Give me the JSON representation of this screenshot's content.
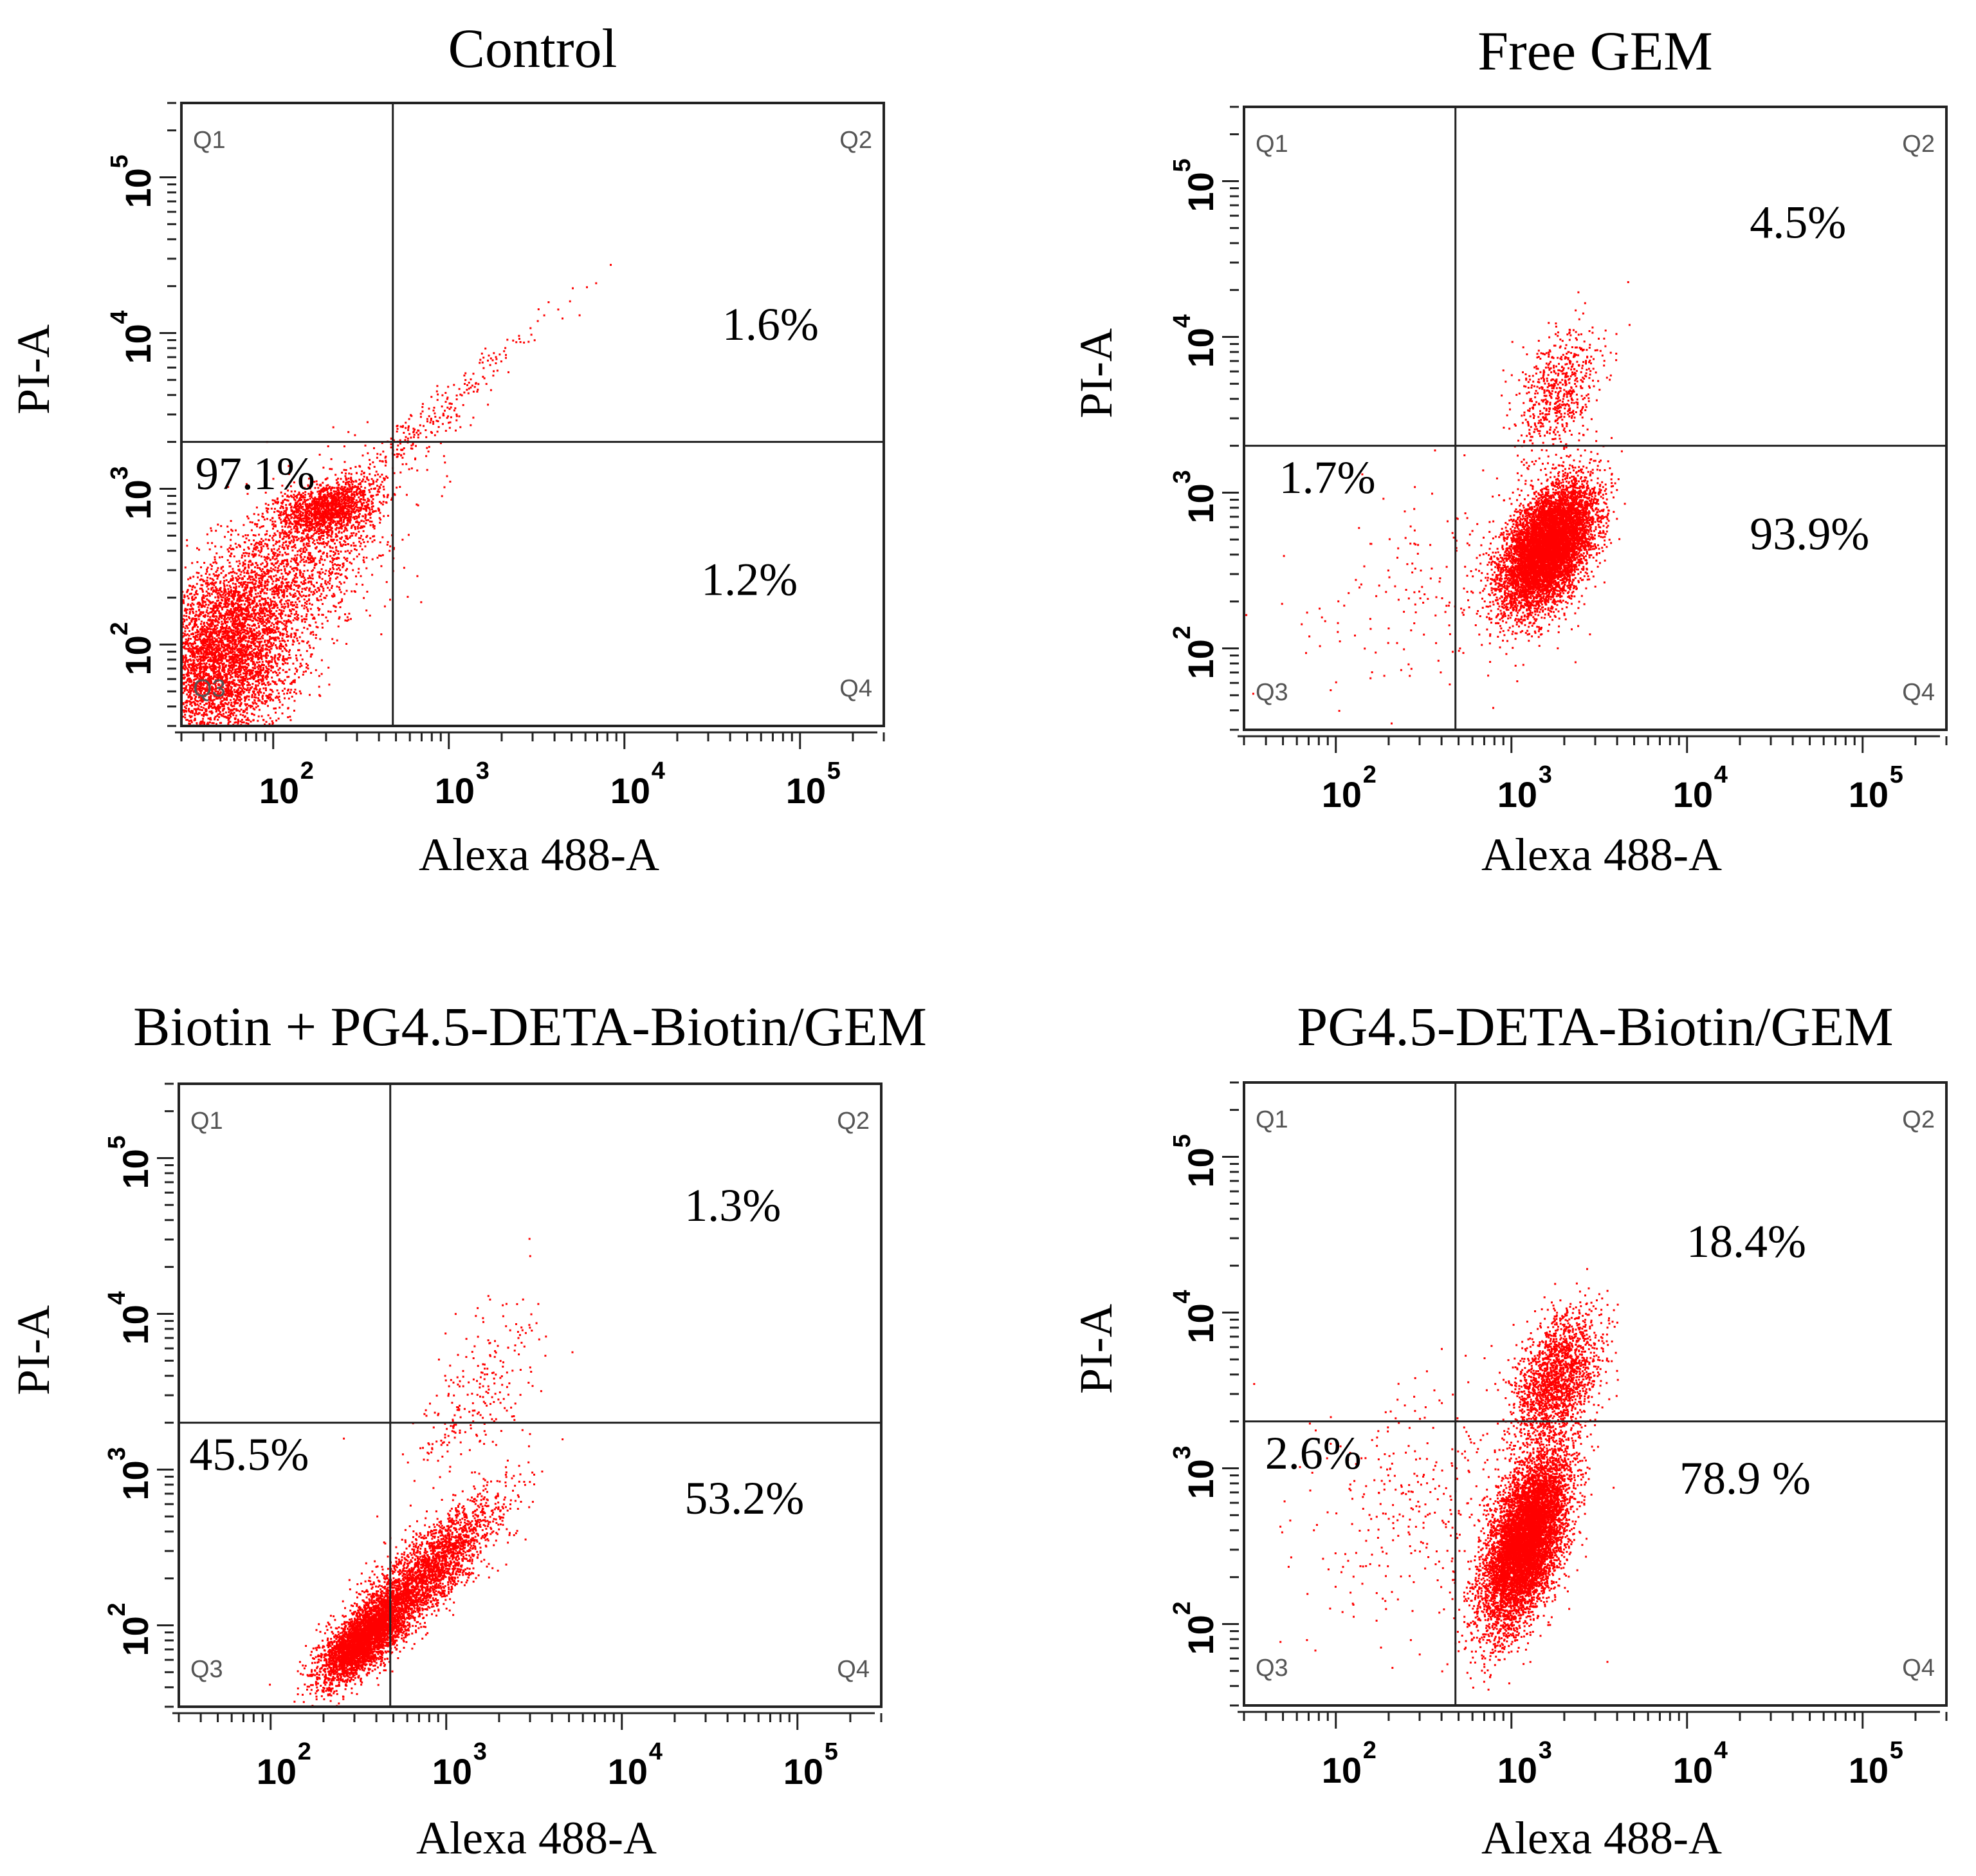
{
  "chart_data": [
    {
      "type": "scatter",
      "title": "Control",
      "xlabel": "Alexa 488-A",
      "ylabel": "PI-A",
      "xscale": "log",
      "yscale": "log",
      "xlim": [
        30,
        300000
      ],
      "ylim": [
        30,
        300000
      ],
      "x_ticks": [
        100,
        1000,
        10000,
        100000
      ],
      "y_ticks": [
        100,
        1000,
        10000,
        100000
      ],
      "gate": {
        "x": 480,
        "y": 2000
      },
      "quadrants": {
        "Q1": "Q1",
        "Q2": "Q2",
        "Q3": "Q3",
        "Q4": "Q4"
      },
      "percentages": {
        "Q2": "1.6%",
        "Q3": "97.1%",
        "Q4": "1.2%"
      },
      "point_color": "#ff0000",
      "populations": [
        {
          "cx": 50,
          "cy": 80,
          "sx": 0.22,
          "sy": 0.28,
          "rho": 0.2,
          "n": 4500
        },
        {
          "cx": 200,
          "cy": 750,
          "sx": 0.14,
          "sy": 0.09,
          "rho": 0.3,
          "n": 1400
        },
        {
          "cx": 120,
          "cy": 300,
          "sx": 0.28,
          "sy": 0.3,
          "rho": 0.6,
          "n": 1700
        },
        {
          "cx": 700,
          "cy": 2500,
          "sx": 0.35,
          "sy": 0.35,
          "rho": 0.97,
          "n": 320
        }
      ]
    },
    {
      "type": "scatter",
      "title": "Free GEM",
      "xlabel": "Alexa 488-A",
      "ylabel": "PI-A",
      "xscale": "log",
      "yscale": "log",
      "xlim": [
        30,
        300000
      ],
      "ylim": [
        30,
        300000
      ],
      "x_ticks": [
        100,
        1000,
        10000,
        100000
      ],
      "y_ticks": [
        100,
        1000,
        10000,
        100000
      ],
      "gate": {
        "x": 480,
        "y": 2000
      },
      "quadrants": {
        "Q1": "Q1",
        "Q2": "Q2",
        "Q3": "Q3",
        "Q4": "Q4"
      },
      "percentages": {
        "Q2": "4.5%",
        "Q3": "1.7%",
        "Q4": "93.9%"
      },
      "point_color": "#ff0000",
      "populations": [
        {
          "cx": 1600,
          "cy": 450,
          "sx": 0.13,
          "sy": 0.2,
          "rho": 0.5,
          "n": 7500
        },
        {
          "cx": 1800,
          "cy": 4500,
          "sx": 0.12,
          "sy": 0.2,
          "rho": 0.4,
          "n": 650
        },
        {
          "cx": 400,
          "cy": 250,
          "sx": 0.4,
          "sy": 0.35,
          "rho": 0.3,
          "n": 180
        }
      ]
    },
    {
      "type": "scatter",
      "title": "Biotin + PG4.5-DETA-Biotin/GEM",
      "xlabel": "Alexa 488-A",
      "ylabel": "PI-A",
      "xscale": "log",
      "yscale": "log",
      "xlim": [
        30,
        300000
      ],
      "ylim": [
        30,
        300000
      ],
      "x_ticks": [
        100,
        1000,
        10000,
        100000
      ],
      "y_ticks": [
        100,
        1000,
        10000,
        100000
      ],
      "gate": {
        "x": 480,
        "y": 2000
      },
      "quadrants": {
        "Q1": "Q1",
        "Q2": "Q2",
        "Q3": "Q3",
        "Q4": "Q4"
      },
      "percentages": {
        "Q2": "1.3%",
        "Q3": "45.5%",
        "Q4": "53.2%"
      },
      "point_color": "#ff0000",
      "populations": [
        {
          "cx": 330,
          "cy": 80,
          "sx": 0.12,
          "sy": 0.14,
          "rho": 0.7,
          "n": 3200
        },
        {
          "cx": 700,
          "cy": 200,
          "sx": 0.22,
          "sy": 0.25,
          "rho": 0.85,
          "n": 3000
        },
        {
          "cx": 1400,
          "cy": 3000,
          "sx": 0.2,
          "sy": 0.3,
          "rho": 0.6,
          "n": 250
        }
      ]
    },
    {
      "type": "scatter",
      "title": "PG4.5-DETA-Biotin/GEM",
      "xlabel": "Alexa 488-A",
      "ylabel": "PI-A",
      "xscale": "log",
      "yscale": "log",
      "xlim": [
        30,
        300000
      ],
      "ylim": [
        30,
        300000
      ],
      "x_ticks": [
        100,
        1000,
        10000,
        100000
      ],
      "y_ticks": [
        100,
        1000,
        10000,
        100000
      ],
      "gate": {
        "x": 480,
        "y": 2000
      },
      "quadrants": {
        "Q1": "Q1",
        "Q2": "Q2",
        "Q3": "Q3",
        "Q4": "Q4"
      },
      "percentages": {
        "Q2": "18.4%",
        "Q3": "2.6%",
        "Q4": "78.9 %"
      },
      "point_color": "#ff0000",
      "populations": [
        {
          "cx": 1200,
          "cy": 350,
          "sx": 0.12,
          "sy": 0.28,
          "rho": 0.55,
          "n": 7500
        },
        {
          "cx": 1800,
          "cy": 4000,
          "sx": 0.12,
          "sy": 0.2,
          "rho": 0.4,
          "n": 1800
        },
        {
          "cx": 300,
          "cy": 600,
          "sx": 0.35,
          "sy": 0.4,
          "rho": 0.3,
          "n": 350
        }
      ]
    }
  ]
}
